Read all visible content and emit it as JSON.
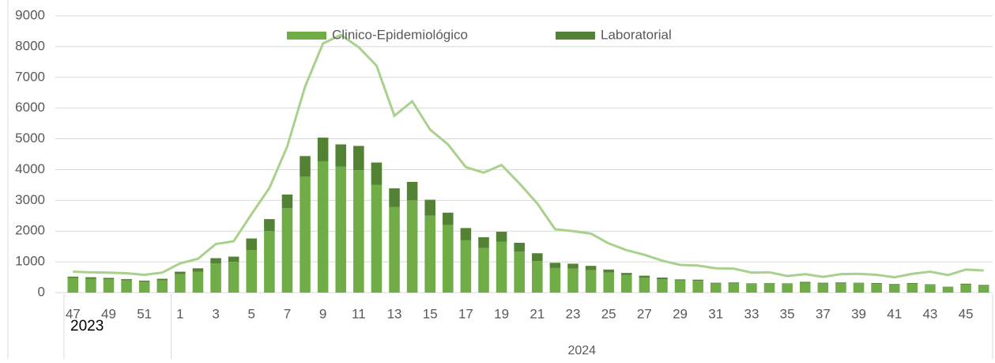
{
  "chart_data": {
    "type": "bar",
    "stacked": true,
    "categories": [
      "47",
      null,
      "49",
      null,
      "51",
      null,
      "1",
      null,
      "3",
      null,
      "5",
      null,
      "7",
      null,
      "9",
      null,
      "11",
      null,
      "13",
      null,
      "15",
      null,
      "17",
      null,
      "19",
      null,
      "21",
      null,
      "23",
      null,
      "25",
      null,
      "27",
      null,
      "29",
      null,
      "31",
      null,
      "33",
      null,
      "35",
      null,
      "37",
      null,
      "39",
      null,
      "41",
      null,
      "43",
      null,
      "45",
      null
    ],
    "groups": [
      {
        "label": "2023",
        "count": 6
      },
      {
        "label": "2024",
        "count": 46
      }
    ],
    "series": [
      {
        "name": "Clinico-Epidemiológico",
        "color": "#70ad47",
        "values": [
          470,
          450,
          430,
          400,
          350,
          400,
          600,
          680,
          950,
          1000,
          1380,
          2000,
          2750,
          3770,
          4270,
          4100,
          3980,
          3500,
          2780,
          3000,
          2500,
          2200,
          1700,
          1450,
          1650,
          1330,
          1020,
          800,
          780,
          730,
          650,
          570,
          480,
          430,
          400,
          380,
          290,
          300,
          280,
          290,
          280,
          320,
          290,
          300,
          300,
          280,
          260,
          280,
          250,
          170,
          260,
          230
        ]
      },
      {
        "name": "Laboratorial",
        "color": "#548235",
        "values": [
          50,
          50,
          50,
          40,
          40,
          50,
          80,
          110,
          170,
          170,
          380,
          390,
          440,
          670,
          770,
          720,
          790,
          730,
          610,
          600,
          520,
          400,
          400,
          350,
          330,
          290,
          260,
          170,
          160,
          140,
          100,
          70,
          70,
          60,
          30,
          40,
          30,
          30,
          20,
          20,
          20,
          30,
          30,
          30,
          20,
          30,
          20,
          30,
          20,
          20,
          30,
          20
        ]
      },
      {
        "type": "line",
        "color": "#a9d18e",
        "values": [
          680,
          660,
          650,
          630,
          580,
          650,
          950,
          1100,
          1580,
          1670,
          2550,
          3400,
          4750,
          6700,
          8100,
          8380,
          7980,
          7380,
          5750,
          6220,
          5300,
          4820,
          4080,
          3900,
          4150,
          3550,
          2900,
          2060,
          2000,
          1920,
          1600,
          1380,
          1230,
          1040,
          900,
          880,
          790,
          780,
          650,
          660,
          540,
          600,
          510,
          600,
          610,
          580,
          500,
          610,
          680,
          570,
          750,
          720
        ]
      }
    ],
    "ylim": [
      0,
      9000
    ],
    "yticks": [
      0,
      1000,
      2000,
      3000,
      4000,
      5000,
      6000,
      7000,
      8000,
      9000
    ],
    "grid": true,
    "legend": "top"
  }
}
